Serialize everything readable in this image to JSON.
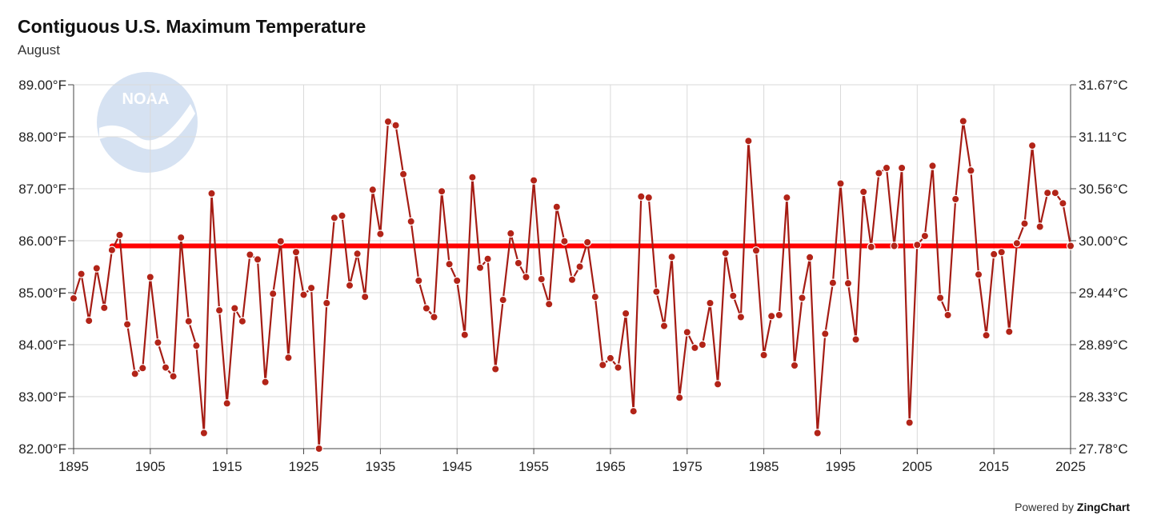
{
  "header": {
    "title": "Contiguous U.S. Maximum Temperature",
    "subtitle": "August"
  },
  "logo": {
    "text": "NOAA",
    "icon": "noaa-logo-icon"
  },
  "credit": {
    "prefix": "Powered by ",
    "brand": "ZingChart"
  },
  "colors": {
    "series": "#a51c14",
    "marker": "#b22418",
    "mean_line": "#ff0000"
  },
  "chart_data": {
    "type": "line",
    "title": "Contiguous U.S. Maximum Temperature",
    "subtitle": "August",
    "x_ticks": [
      1895,
      1905,
      1915,
      1925,
      1935,
      1945,
      1955,
      1965,
      1975,
      1985,
      1995,
      2005,
      2015,
      2025
    ],
    "y_left_ticks": [
      "82.00°F",
      "83.00°F",
      "84.00°F",
      "85.00°F",
      "86.00°F",
      "87.00°F",
      "88.00°F",
      "89.00°F"
    ],
    "y_right_ticks": [
      "27.78°C",
      "28.33°C",
      "28.89°C",
      "29.44°C",
      "30.00°C",
      "30.56°C",
      "31.11°C",
      "31.67°C"
    ],
    "xlim": [
      1895,
      2025
    ],
    "ylim": [
      82,
      89
    ],
    "grid": true,
    "reference_line": {
      "value": 85.9
    },
    "series": [
      {
        "x_start": 1895,
        "values": [
          84.89,
          85.36,
          84.46,
          85.47,
          84.71,
          85.82,
          86.11,
          84.39,
          83.44,
          83.55,
          85.3,
          84.04,
          83.56,
          83.39,
          86.06,
          84.45,
          83.98,
          82.3,
          86.91,
          84.66,
          82.87,
          84.7,
          84.45,
          85.73,
          85.64,
          83.28,
          84.98,
          85.99,
          83.75,
          85.78,
          84.96,
          85.09,
          82.0,
          84.8,
          86.44,
          86.48,
          85.14,
          85.75,
          84.92,
          86.98,
          86.13,
          88.29,
          88.22,
          87.28,
          86.37,
          85.23,
          84.7,
          84.53,
          86.95,
          85.55,
          85.23,
          84.19,
          87.22,
          85.48,
          85.65,
          83.53,
          84.86,
          86.14,
          85.57,
          85.3,
          87.16,
          85.26,
          84.78,
          86.65,
          85.99,
          85.25,
          85.5,
          85.97,
          84.92,
          83.61,
          83.74,
          83.56,
          84.6,
          82.72,
          86.85,
          86.83,
          85.02,
          84.36,
          85.69,
          82.98,
          84.24,
          83.94,
          84.0,
          84.8,
          83.24,
          85.76,
          84.94,
          84.53,
          87.92,
          85.81,
          83.8,
          84.55,
          84.57,
          86.83,
          83.6,
          84.9,
          85.68,
          82.3,
          84.21,
          85.19,
          87.1,
          85.18,
          84.1,
          86.94,
          85.88,
          87.3,
          87.4,
          85.9,
          87.4,
          82.5,
          85.92,
          86.09,
          87.44,
          84.9,
          84.57,
          86.8,
          88.3,
          87.35,
          85.35,
          84.18,
          85.74,
          85.78,
          84.25,
          85.95,
          86.33,
          87.83,
          86.27,
          86.92,
          86.92,
          86.72,
          85.9
        ]
      }
    ]
  }
}
